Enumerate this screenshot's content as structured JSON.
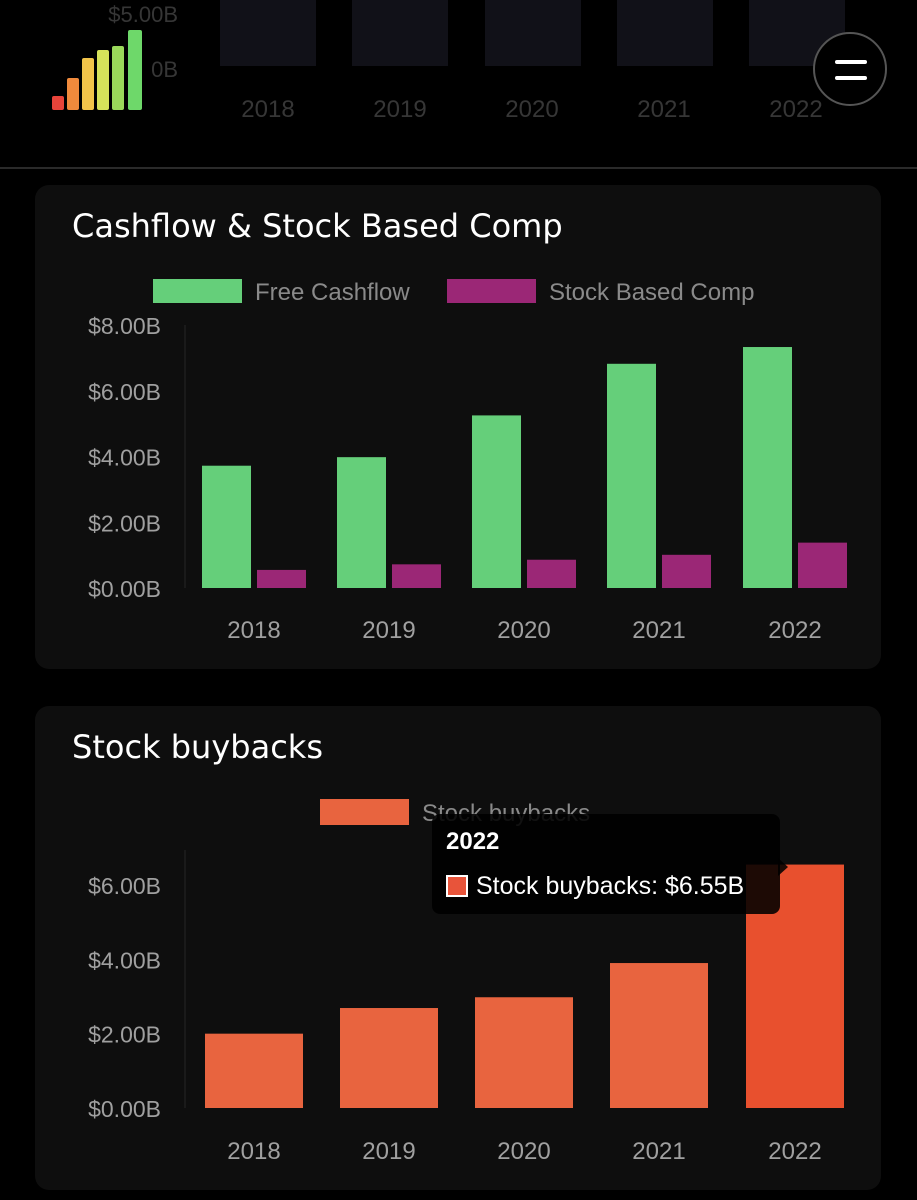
{
  "header": {
    "menu_icon": "hamburger-menu-icon",
    "logo_icon": "signal-bars-logo-icon",
    "logo_colors": [
      "#e8443a",
      "#f08a3c",
      "#f2c44a",
      "#d6e25a",
      "#9ad85a",
      "#6ed86a"
    ],
    "previous_chart_visible_labels": {
      "y_ticks": [
        "$5.00B",
        "0B"
      ],
      "x_ticks": [
        "2018",
        "2019",
        "2020",
        "2021",
        "2022"
      ]
    }
  },
  "cards": [
    {
      "title": "Cashflow & Stock Based Comp"
    },
    {
      "title": "Stock buybacks"
    }
  ],
  "tooltip": {
    "title": "2022",
    "label": "Stock buybacks: $6.55B"
  },
  "chart_data": [
    {
      "type": "bar",
      "title": "Cashflow & Stock Based Comp",
      "categories": [
        "2018",
        "2019",
        "2020",
        "2021",
        "2022"
      ],
      "series": [
        {
          "name": "Free Cashflow",
          "color": "#65cf7a",
          "values": [
            3.72,
            3.98,
            5.25,
            6.82,
            7.33
          ]
        },
        {
          "name": "Stock Based Comp",
          "color": "#9b2776",
          "values": [
            0.55,
            0.72,
            0.86,
            1.01,
            1.38
          ]
        }
      ],
      "yticks": [
        "$0.00B",
        "$2.00B",
        "$4.00B",
        "$6.00B",
        "$8.00B"
      ],
      "ylim": [
        0,
        8
      ],
      "legend": "top",
      "grid": false
    },
    {
      "type": "bar",
      "title": "Stock buybacks",
      "categories": [
        "2018",
        "2019",
        "2020",
        "2021",
        "2022"
      ],
      "series": [
        {
          "name": "Stock buybacks",
          "color": "#e8643f",
          "highlight_color": "#e8502e",
          "values": [
            2.0,
            2.69,
            2.98,
            3.9,
            6.55
          ]
        }
      ],
      "yticks": [
        "$0.00B",
        "$2.00B",
        "$4.00B",
        "$6.00B"
      ],
      "ylim": [
        0,
        6.75
      ],
      "legend": "top",
      "grid": false,
      "active_category": "2022"
    }
  ]
}
